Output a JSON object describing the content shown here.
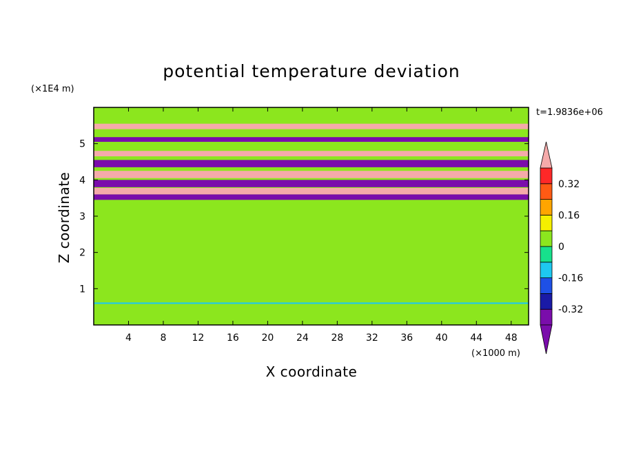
{
  "chart_data": {
    "type": "heatmap",
    "title": "potential temperature deviation",
    "xlabel": "X coordinate",
    "ylabel": "Z coordinate",
    "x_units": "(×1000 m)",
    "y_units": "(×1E4 m)",
    "time_label": "t=1.9836e+06",
    "xlim": [
      0,
      50
    ],
    "ylim": [
      0,
      6
    ],
    "x_ticks": [
      4,
      8,
      12,
      16,
      20,
      24,
      28,
      32,
      36,
      40,
      44,
      48
    ],
    "y_ticks": [
      1,
      2,
      3,
      4,
      5
    ],
    "colorbar": {
      "levels": [
        -0.4,
        -0.32,
        -0.24,
        -0.16,
        -0.08,
        0,
        0.08,
        0.16,
        0.24,
        0.32,
        0.4
      ],
      "labels": [
        {
          "value": -0.32,
          "text": "-0.32"
        },
        {
          "value": -0.16,
          "text": "-0.16"
        },
        {
          "value": 0,
          "text": "0"
        },
        {
          "value": 0.16,
          "text": "0.16"
        },
        {
          "value": 0.32,
          "text": "0.32"
        }
      ],
      "colors": [
        "#7a0dab",
        "#1a1aa6",
        "#1e50e6",
        "#1ec8f0",
        "#17e08c",
        "#8ce61e",
        "#f5f000",
        "#ffa500",
        "#ff5a14",
        "#ff2828"
      ],
      "over_color": "#f5aaaa",
      "under_color": "#7a0dab"
    },
    "background_field_color": "#8ce61e",
    "layers": [
      {
        "z0": 5.4,
        "z1": 5.55,
        "value": 0.4
      },
      {
        "z0": 5.05,
        "z1": 5.18,
        "value": -0.4
      },
      {
        "z0": 4.65,
        "z1": 4.8,
        "value": 0.4
      },
      {
        "z0": 4.35,
        "z1": 4.55,
        "value": -0.4
      },
      {
        "z0": 4.05,
        "z1": 4.25,
        "value": 0.4
      },
      {
        "z0": 3.8,
        "z1": 4.0,
        "value": -0.4
      },
      {
        "z0": 3.6,
        "z1": 3.78,
        "value": 0.4
      },
      {
        "z0": 3.45,
        "z1": 3.6,
        "value": -0.4
      },
      {
        "z0": 0.58,
        "z1": 0.62,
        "value": -0.16
      }
    ]
  }
}
